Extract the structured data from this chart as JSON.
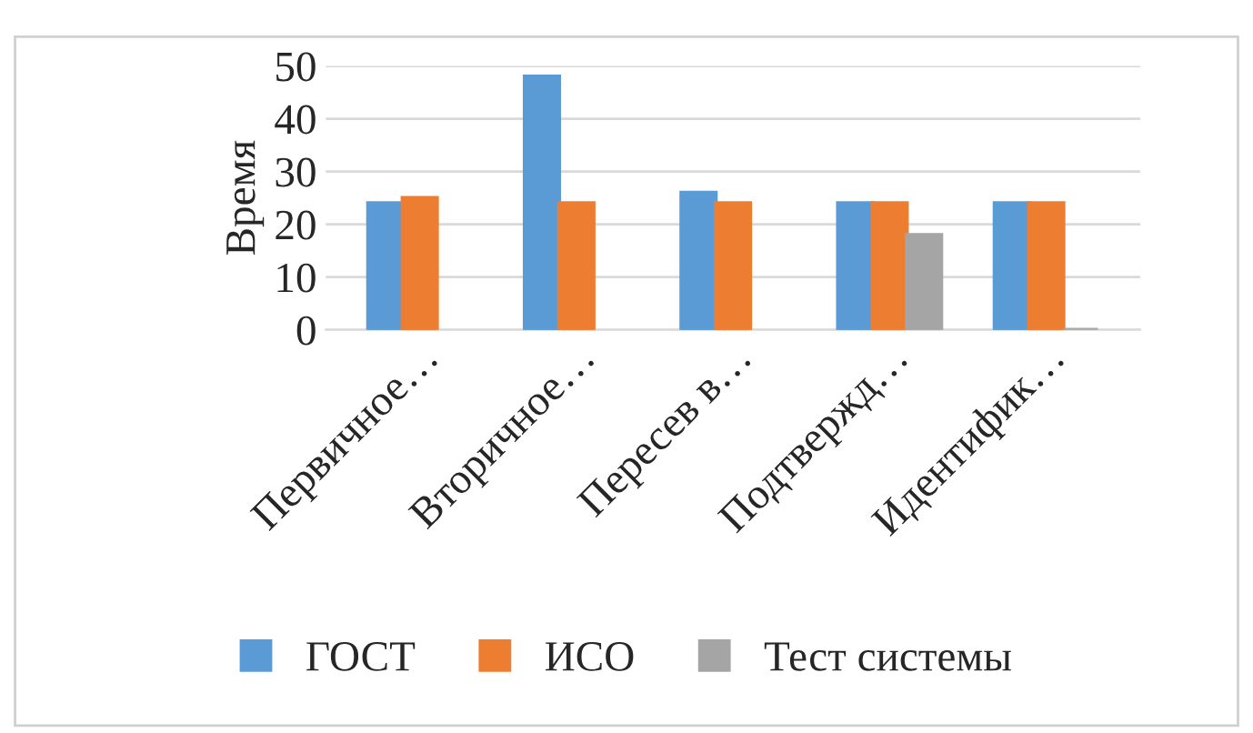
{
  "chart_data": {
    "type": "bar",
    "ylabel": "Время",
    "categories": [
      "Первичное…",
      "Вторичное…",
      "Пересев в…",
      "Подтвержд…",
      "Идентифик…"
    ],
    "series": [
      {
        "name": "ГОСТ",
        "color": "#5b9bd5",
        "values": [
          24,
          48,
          26,
          24,
          24
        ]
      },
      {
        "name": "ИСО",
        "color": "#ed7d31",
        "values": [
          25,
          24,
          24,
          24,
          24
        ]
      },
      {
        "name": "Тест системы",
        "color": "#a5a5a5",
        "values": [
          null,
          null,
          null,
          18,
          0
        ]
      }
    ],
    "ylim": [
      0,
      50
    ],
    "yticks": [
      0,
      10,
      20,
      30,
      40,
      50
    ],
    "grid": "y",
    "legend": "bottom"
  }
}
